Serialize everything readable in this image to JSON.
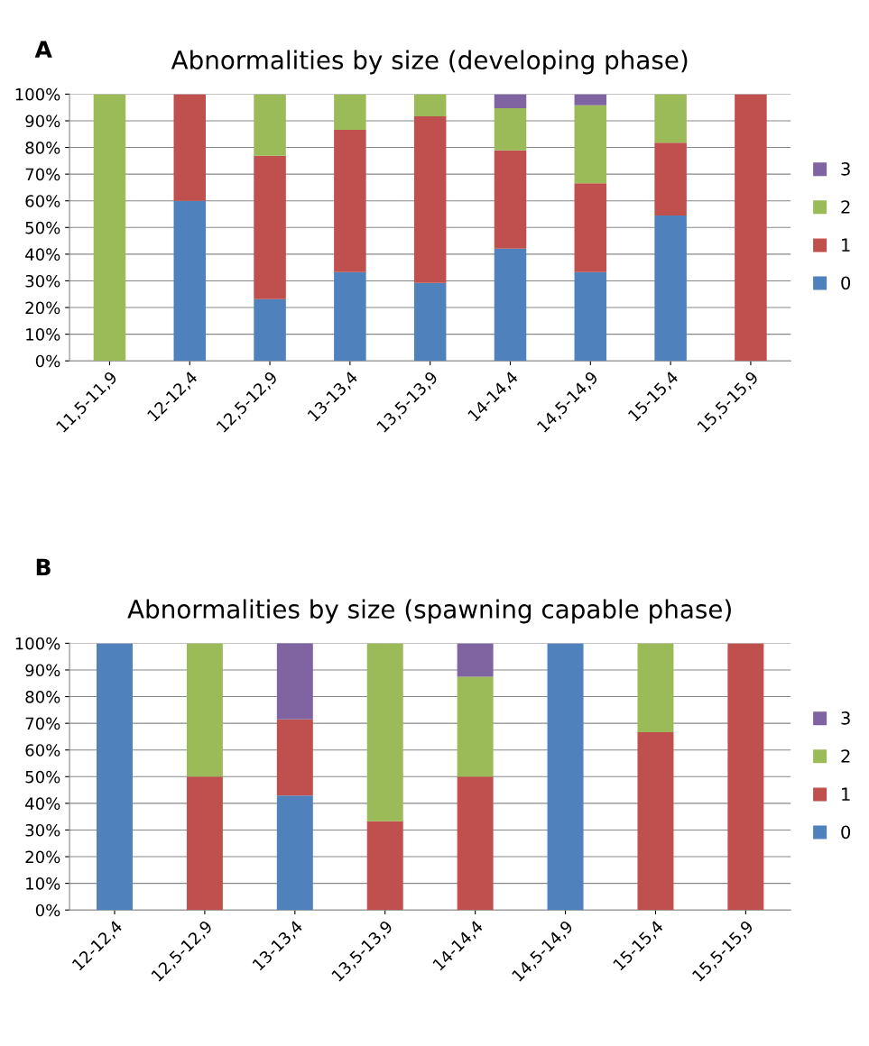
{
  "chart_data": [
    {
      "type": "bar",
      "stacked": true,
      "title": "Abnormalities by size (developing phase)",
      "annotations": [
        "A"
      ],
      "categories": [
        "11,5-11,9",
        "12-12,4",
        "12,5-12,9",
        "13-13,4",
        "13,5-13,9",
        "14-14,4",
        "14,5-14,9",
        "15-15,4",
        "15,5-15,9"
      ],
      "series": [
        {
          "name": "0",
          "color": "#4f81bd",
          "values": [
            0,
            60,
            23.1,
            33.3,
            29.2,
            42.1,
            33.3,
            54.5,
            0
          ]
        },
        {
          "name": "1",
          "color": "#c0504d",
          "values": [
            0,
            40,
            53.8,
            53.3,
            62.5,
            36.8,
            33.3,
            27.3,
            100
          ]
        },
        {
          "name": "2",
          "color": "#9bbb59",
          "values": [
            100,
            0,
            23.1,
            13.3,
            8.3,
            15.8,
            29.2,
            18.2,
            0
          ]
        },
        {
          "name": "3",
          "color": "#8064a2",
          "values": [
            0,
            0,
            0,
            0,
            0,
            5.3,
            4.2,
            0,
            0
          ]
        }
      ],
      "ylim": [
        0,
        100
      ],
      "yticks": [
        {
          "value": 0,
          "label": "0%"
        },
        {
          "value": 10,
          "label": "10%"
        },
        {
          "value": 20,
          "label": "20%"
        },
        {
          "value": 30,
          "label": "30%"
        },
        {
          "value": 40,
          "label": "40%"
        },
        {
          "value": 50,
          "label": "50%"
        },
        {
          "value": 60,
          "label": "60%"
        },
        {
          "value": 70,
          "label": "70%"
        },
        {
          "value": 80,
          "label": "80%"
        },
        {
          "value": 90,
          "label": "90%"
        },
        {
          "value": 100,
          "label": "100%"
        }
      ],
      "grid": "y",
      "legend": "right"
    },
    {
      "type": "bar",
      "stacked": true,
      "title": "Abnormalities by size (spawning capable phase)",
      "annotations": [
        "B"
      ],
      "categories": [
        "12-12,4",
        "12,5-12,9",
        "13-13,4",
        "13,5-13,9",
        "14-14,4",
        "14,5-14,9",
        "15-15,4",
        "15,5-15,9"
      ],
      "series": [
        {
          "name": "0",
          "color": "#4f81bd",
          "values": [
            100,
            0,
            42.9,
            0,
            0,
            100,
            0,
            0
          ]
        },
        {
          "name": "1",
          "color": "#c0504d",
          "values": [
            0,
            50,
            28.6,
            33.3,
            50,
            0,
            66.7,
            100
          ]
        },
        {
          "name": "2",
          "color": "#9bbb59",
          "values": [
            0,
            50,
            0,
            66.7,
            37.5,
            0,
            33.3,
            0
          ]
        },
        {
          "name": "3",
          "color": "#8064a2",
          "values": [
            0,
            0,
            28.6,
            0,
            12.5,
            0,
            0,
            0
          ]
        }
      ],
      "ylim": [
        0,
        100
      ],
      "yticks": [
        {
          "value": 0,
          "label": "0%"
        },
        {
          "value": 10,
          "label": "10%"
        },
        {
          "value": 20,
          "label": "20%"
        },
        {
          "value": 30,
          "label": "30%"
        },
        {
          "value": 40,
          "label": "40%"
        },
        {
          "value": 50,
          "label": "50%"
        },
        {
          "value": 60,
          "label": "60%"
        },
        {
          "value": 70,
          "label": "70%"
        },
        {
          "value": 80,
          "label": "80%"
        },
        {
          "value": 90,
          "label": "90%"
        },
        {
          "value": 100,
          "label": "100%"
        }
      ],
      "grid": "y",
      "legend": "right"
    }
  ]
}
